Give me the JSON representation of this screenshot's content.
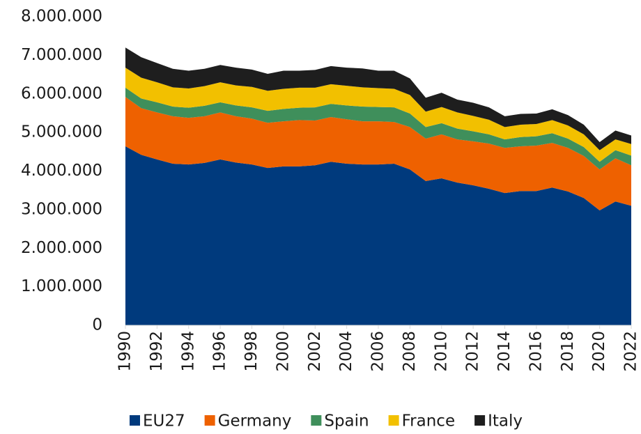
{
  "chart_data": {
    "type": "stacked_area",
    "x": [
      1990,
      1991,
      1992,
      1993,
      1994,
      1995,
      1996,
      1997,
      1998,
      1999,
      2000,
      2001,
      2002,
      2003,
      2004,
      2005,
      2006,
      2007,
      2008,
      2009,
      2010,
      2011,
      2012,
      2013,
      2014,
      2015,
      2016,
      2017,
      2018,
      2019,
      2020,
      2021,
      2022
    ],
    "xlim": [
      1990,
      2022
    ],
    "xticks": [
      1990,
      1992,
      1994,
      1996,
      1998,
      2000,
      2002,
      2004,
      2006,
      2008,
      2010,
      2012,
      2014,
      2016,
      2018,
      2020,
      2022
    ],
    "ylim": [
      0,
      8000000
    ],
    "yticks": [
      0,
      {
        "value": 1000000,
        "label": "1.000.000"
      },
      {
        "value": 2000000,
        "label": "2.000.000"
      },
      {
        "value": 3000000,
        "label": "3.000.000"
      },
      {
        "value": 4000000,
        "label": "4.000.000"
      },
      {
        "value": 5000000,
        "label": "5.000.000"
      },
      {
        "value": 6000000,
        "label": "6.000.000"
      },
      {
        "value": 7000000,
        "label": "7.000.000"
      },
      {
        "value": 8000000,
        "label": "8.000.000"
      }
    ],
    "grid": false,
    "legend": "bottom",
    "series": [
      {
        "name": "EU27",
        "color": "#003a7d",
        "values": [
          4640000,
          4420000,
          4300000,
          4190000,
          4170000,
          4210000,
          4300000,
          4220000,
          4170000,
          4080000,
          4120000,
          4120000,
          4150000,
          4240000,
          4190000,
          4170000,
          4170000,
          4190000,
          4040000,
          3740000,
          3810000,
          3700000,
          3630000,
          3540000,
          3430000,
          3480000,
          3480000,
          3570000,
          3470000,
          3300000,
          2980000,
          3210000,
          3100000
        ]
      },
      {
        "name": "Germany",
        "color": "#ee6100",
        "values": [
          1280000,
          1210000,
          1220000,
          1230000,
          1210000,
          1210000,
          1220000,
          1200000,
          1190000,
          1170000,
          1170000,
          1200000,
          1160000,
          1160000,
          1150000,
          1120000,
          1120000,
          1080000,
          1100000,
          1100000,
          1140000,
          1120000,
          1140000,
          1170000,
          1170000,
          1160000,
          1180000,
          1160000,
          1130000,
          1090000,
          1060000,
          1120000,
          1050000
        ]
      },
      {
        "name": "Spain",
        "color": "#3f8f5b",
        "values": [
          240000,
          250000,
          260000,
          250000,
          260000,
          270000,
          260000,
          280000,
          290000,
          310000,
          320000,
          320000,
          340000,
          340000,
          360000,
          380000,
          370000,
          380000,
          350000,
          300000,
          290000,
          280000,
          260000,
          240000,
          220000,
          240000,
          240000,
          250000,
          240000,
          230000,
          200000,
          210000,
          250000
        ]
      },
      {
        "name": "France",
        "color": "#f2c000",
        "values": [
          520000,
          540000,
          520000,
          500000,
          500000,
          510000,
          520000,
          520000,
          530000,
          520000,
          520000,
          520000,
          510000,
          510000,
          510000,
          500000,
          490000,
          480000,
          480000,
          400000,
          420000,
          420000,
          400000,
          380000,
          320000,
          320000,
          320000,
          340000,
          340000,
          330000,
          300000,
          280000,
          300000
        ]
      },
      {
        "name": "Italy",
        "color": "#1e1e1e",
        "values": [
          520000,
          530000,
          500000,
          480000,
          460000,
          450000,
          450000,
          460000,
          450000,
          440000,
          470000,
          440000,
          460000,
          470000,
          470000,
          490000,
          450000,
          470000,
          430000,
          360000,
          370000,
          330000,
          340000,
          320000,
          280000,
          280000,
          270000,
          280000,
          270000,
          250000,
          210000,
          230000,
          220000
        ]
      }
    ]
  }
}
